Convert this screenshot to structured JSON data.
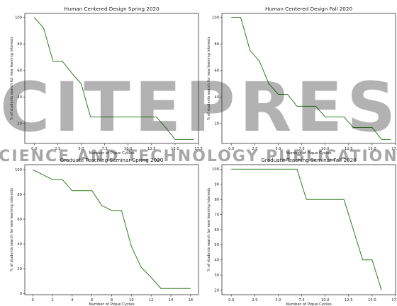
{
  "chart_data": [
    {
      "type": "line",
      "title": "Human Centered Design Spring 2020",
      "xlabel": "Number of Pique Cycles",
      "ylabel": "% of students search for new learning interests",
      "xlim": [
        -1,
        17.5
      ],
      "ylim": [
        5,
        103
      ],
      "xticks": [
        0,
        2.5,
        5,
        7.5,
        10,
        12.5,
        15,
        17.5
      ],
      "xtick_labels": [
        "0.0",
        "2.5",
        "5.0",
        "7.5",
        "10.0",
        "12.5",
        "15.0",
        "17.5"
      ],
      "yticks": [
        20,
        40,
        60,
        80,
        100
      ],
      "ytick_labels": [
        "20",
        "40",
        "60",
        "80",
        "100"
      ],
      "line_color": "#2e7d1e",
      "grid": false,
      "series": [
        {
          "x": [
            0,
            1,
            2,
            3,
            4,
            5,
            6,
            7,
            8,
            9,
            10,
            11,
            12,
            13,
            14,
            15,
            16,
            17
          ],
          "values": [
            100,
            92,
            67,
            67,
            58,
            50,
            25,
            25,
            25,
            25,
            25,
            25,
            25,
            25,
            17,
            8,
            8,
            8
          ]
        }
      ]
    },
    {
      "type": "line",
      "title": "Human Centered Design Fall 2020",
      "xlabel": "Number of Pique Cycles",
      "ylabel": "% of students search for new learning interests",
      "xlim": [
        -1,
        17.5
      ],
      "ylim": [
        5,
        103
      ],
      "xticks": [
        0,
        2.5,
        5,
        7.5,
        10,
        12.5,
        15,
        17.5
      ],
      "xtick_labels": [
        "0.0",
        "2.5",
        "5.0",
        "7.5",
        "10.0",
        "12.5",
        "15.0",
        "17.5"
      ],
      "yticks": [
        20,
        40,
        60,
        80,
        100
      ],
      "ytick_labels": [
        "20",
        "40",
        "60",
        "80",
        "100"
      ],
      "line_color": "#2e7d1e",
      "grid": false,
      "series": [
        {
          "x": [
            0,
            1,
            2,
            3,
            4,
            5,
            6,
            7,
            8,
            9,
            10,
            11,
            12,
            13,
            14,
            15,
            16,
            17
          ],
          "values": [
            100,
            100,
            75,
            67,
            50,
            42,
            42,
            33,
            33,
            33,
            25,
            25,
            25,
            17,
            17,
            17,
            8,
            8
          ]
        }
      ]
    },
    {
      "type": "line",
      "title": "Graduate Teaching Seminar Spring 2020",
      "xlabel": "Number of Pique Cycles",
      "ylabel": "% of students search for new learning interests",
      "xlim": [
        -0.8,
        16.8
      ],
      "ylim": [
        -1,
        104
      ],
      "xticks": [
        0,
        2,
        4,
        6,
        8,
        10,
        12,
        14,
        16
      ],
      "xtick_labels": [
        "0",
        "2",
        "4",
        "6",
        "8",
        "10",
        "12",
        "14",
        "16"
      ],
      "yticks": [
        0,
        20,
        40,
        60,
        80,
        100
      ],
      "ytick_labels": [
        "0",
        "20",
        "40",
        "60",
        "80",
        "100"
      ],
      "line_color": "#2e7d1e",
      "grid": false,
      "series": [
        {
          "x": [
            0,
            1,
            2,
            3,
            4,
            5,
            6,
            7,
            8,
            9,
            10,
            11,
            12,
            13,
            14,
            15,
            16
          ],
          "values": [
            100,
            96,
            92,
            92,
            83,
            83,
            83,
            71,
            67,
            67,
            38,
            21,
            13,
            4,
            4,
            4,
            4
          ]
        }
      ]
    },
    {
      "type": "line",
      "title": "Graduate Teaching Seminar Fall 2020",
      "xlabel": "Number of Pique Cycles",
      "ylabel": "% of students search for new learning interests",
      "xlim": [
        -1,
        17.5
      ],
      "ylim": [
        17,
        103
      ],
      "xticks": [
        0,
        2.5,
        5,
        7.5,
        10,
        12.5,
        15,
        17.5
      ],
      "xtick_labels": [
        "0.0",
        "2.5",
        "5.0",
        "7.5",
        "10.0",
        "12.5",
        "15.0",
        "17.5"
      ],
      "yticks": [
        20,
        30,
        40,
        50,
        60,
        70,
        80,
        90,
        100
      ],
      "ytick_labels": [
        "20",
        "30",
        "40",
        "50",
        "60",
        "70",
        "80",
        "90",
        "100"
      ],
      "line_color": "#2e7d1e",
      "grid": false,
      "series": [
        {
          "x": [
            0,
            1,
            2,
            3,
            4,
            5,
            6,
            7,
            8,
            9,
            10,
            11,
            12,
            13,
            14,
            15,
            16
          ],
          "values": [
            100,
            100,
            100,
            100,
            100,
            100,
            100,
            100,
            80,
            80,
            80,
            80,
            80,
            60,
            40,
            40,
            20
          ]
        }
      ]
    }
  ],
  "watermark": {
    "text_large": "SCITEPRESS",
    "text_small": "SCIENCE AND TECHNOLOGY PUBLICATIONS"
  }
}
